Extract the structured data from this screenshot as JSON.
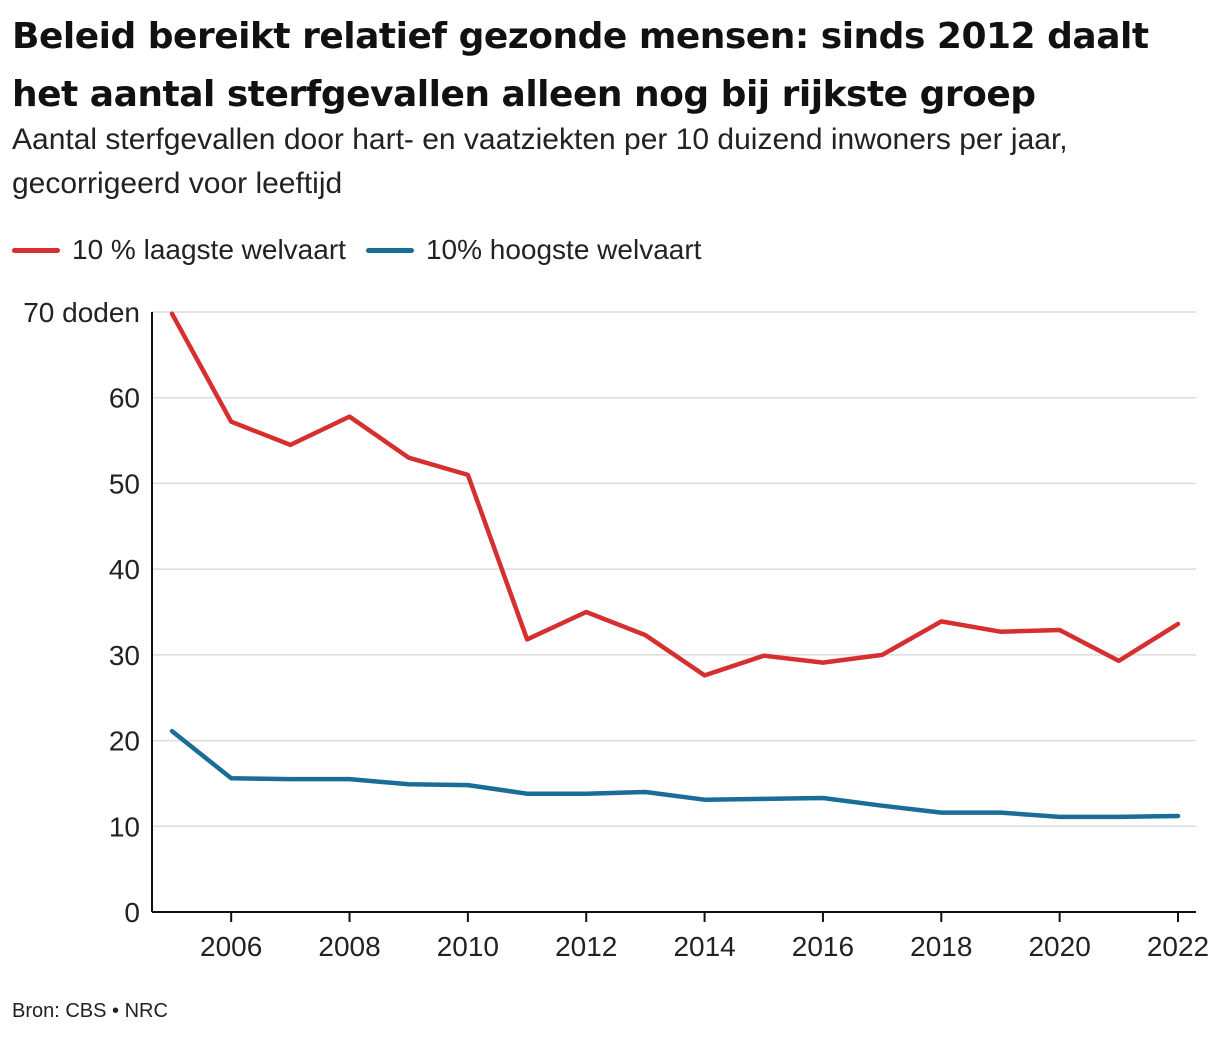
{
  "title": "Beleid bereikt relatief gezonde mensen: sinds 2012 daalt het aantal sterfgevallen alleen nog bij rijkste groep",
  "subtitle": "Aantal sterfgevallen door hart- en vaatziekten per 10 duizend inwoners per jaar, gecorrigeerd voor leeftijd",
  "source": "Bron: CBS • NRC",
  "chart_data": {
    "type": "line",
    "x": [
      2005,
      2006,
      2007,
      2008,
      2009,
      2010,
      2011,
      2012,
      2013,
      2014,
      2015,
      2016,
      2017,
      2018,
      2019,
      2020,
      2021,
      2022
    ],
    "series": [
      {
        "name": "10 % laagste welvaart",
        "color": "#d62f2f",
        "values": [
          69.8,
          57.2,
          54.5,
          57.8,
          53.0,
          51.0,
          31.8,
          35.0,
          32.3,
          27.6,
          29.9,
          29.1,
          30.0,
          33.9,
          32.7,
          32.9,
          29.3,
          33.6
        ]
      },
      {
        "name": "10% hoogste welvaart",
        "color": "#1a6d96",
        "values": [
          21.1,
          15.6,
          15.5,
          15.5,
          14.9,
          14.8,
          13.8,
          13.8,
          14.0,
          13.1,
          13.2,
          13.3,
          12.4,
          11.6,
          11.6,
          11.1,
          11.1,
          11.2
        ]
      }
    ],
    "xticks": [
      2006,
      2008,
      2010,
      2012,
      2014,
      2016,
      2018,
      2020,
      2022
    ],
    "yticks": [
      0,
      10,
      20,
      30,
      40,
      50,
      60,
      70
    ],
    "ytick_labels": [
      "0",
      "10",
      "20",
      "30",
      "40",
      "50",
      "60",
      "70 doden"
    ],
    "ylim": [
      0,
      70
    ],
    "xlim": [
      2005,
      2022
    ],
    "grid": true,
    "legend_position": "top-left"
  }
}
